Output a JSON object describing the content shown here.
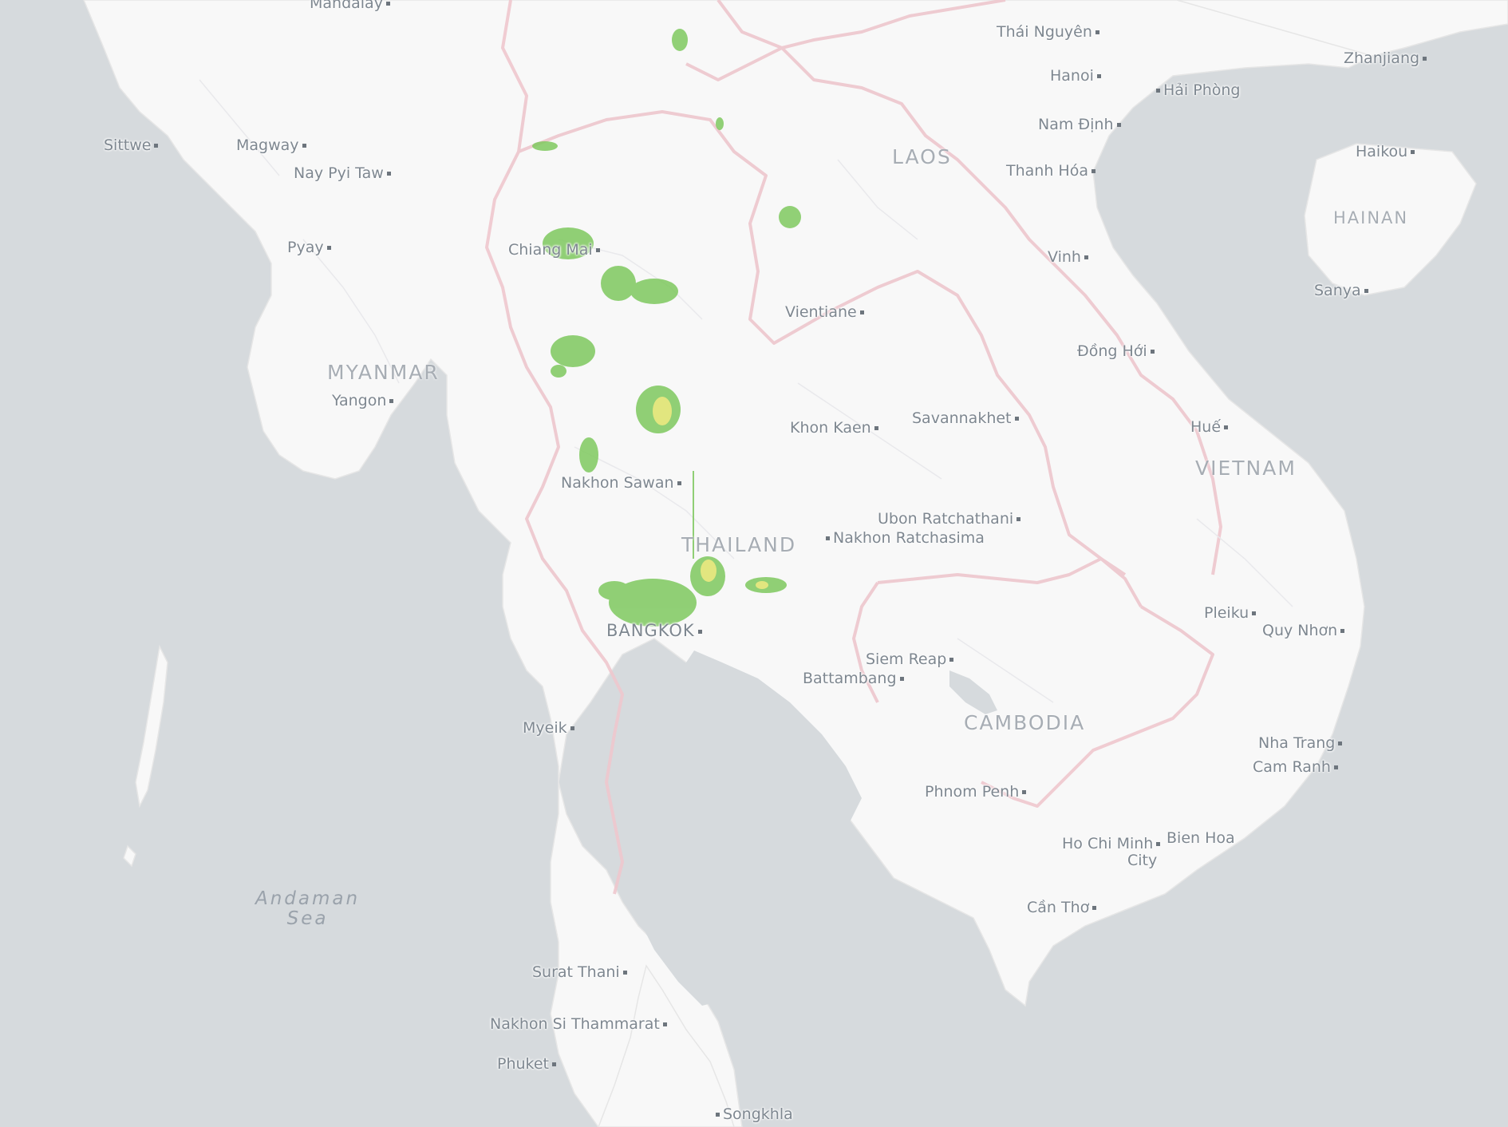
{
  "map": {
    "countries": {
      "myanmar": "MYANMAR",
      "laos": "LAOS",
      "thailand": "THAILAND",
      "cambodia": "CAMBODIA",
      "vietnam": "VIETNAM",
      "hainan": "HAINAN"
    },
    "sea": {
      "line1": "Andaman",
      "line2": "Sea"
    },
    "cities": {
      "mandalay": "Mandalay",
      "sittwe": "Sittwe",
      "magway": "Magway",
      "naypyitaw": "Nay Pyi Taw",
      "pyay": "Pyay",
      "yangon": "Yangon",
      "chiangmai": "Chiang Mai",
      "nakhonsawan": "Nakhon Sawan",
      "bangkok": "BANGKOK",
      "myeik": "Myeik",
      "suratthani": "Surat Thani",
      "nakhonsithammarat": "Nakhon Si Thammarat",
      "phuket": "Phuket",
      "songkhla": "Songkhla",
      "thainguyen": "Thái Nguyên",
      "hanoi": "Hanoi",
      "haiphong": "Hải Phòng",
      "namdinh": "Nam Định",
      "thanhhoa": "Thanh Hóa",
      "vinh": "Vinh",
      "donghoi": "Đồng Hới",
      "hue": "Huế",
      "zhanjiang": "Zhanjiang",
      "haikou": "Haikou",
      "sanya": "Sanya",
      "vientiane": "Vientiane",
      "khonkaen": "Khon Kaen",
      "savannakhet": "Savannakhet",
      "ubon": "Ubon Ratchathani",
      "nakhonratchasima": "Nakhon Ratchasima",
      "siemreap": "Siem Reap",
      "battambang": "Battambang",
      "phnompenh": "Phnom Penh",
      "pleiku": "Pleiku",
      "quynhon": "Quy Nhơn",
      "nhatrang": "Nha Trang",
      "camranh": "Cam Ranh",
      "hochiminh1": "Ho Chi Minh",
      "hochiminh2": "City",
      "bienhoa": "Bien Hoa",
      "cantho": "Cần Thơ"
    },
    "colors": {
      "water": "#d6dadd",
      "land": "#f8f8f8",
      "border": "#efc9cf",
      "precip_light": "#7fc95f",
      "precip_moderate": "#dfe36a"
    }
  }
}
